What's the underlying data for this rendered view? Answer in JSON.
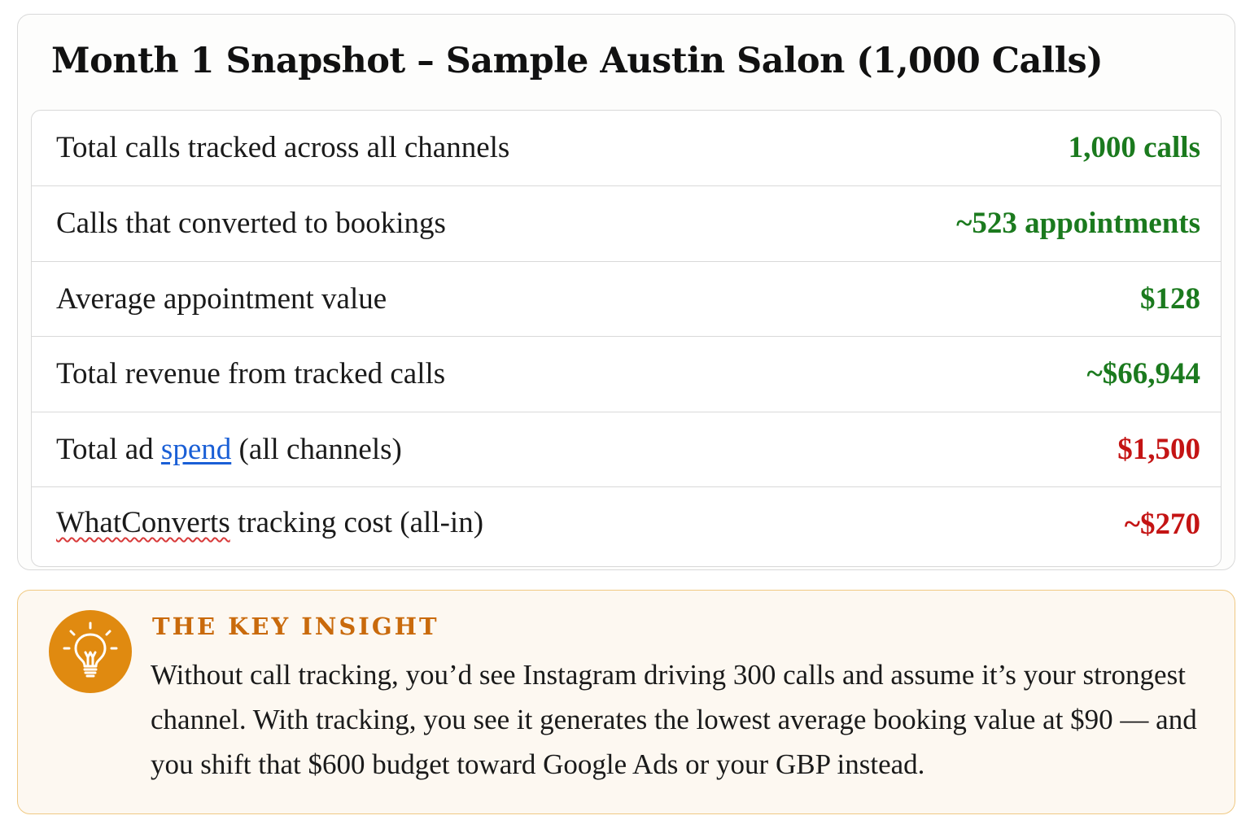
{
  "snapshot": {
    "title": "Month 1 Snapshot – Sample Austin Salon (1,000 Calls)",
    "rows": [
      {
        "label": "Total calls tracked across all channels",
        "value": "1,000 calls"
      },
      {
        "label": "Calls that converted to bookings",
        "value": "~523 appointments"
      },
      {
        "label": "Average appointment value",
        "value": "$128"
      },
      {
        "label": "Total revenue from tracked calls",
        "value": "~$66,944"
      },
      {
        "label_before": "Total ad ",
        "label_link": "spend",
        "label_after": " (all channels)",
        "value": "$1,500"
      },
      {
        "label_flagged": "WhatConverts",
        "label_after": " tracking cost (all-in)",
        "value": "~$270"
      }
    ]
  },
  "colors": {
    "positive": "#1b7a1e",
    "negative": "#c41414",
    "link": "#1a5fd6",
    "accent": "#e08a10"
  },
  "insight": {
    "icon": "lightbulb-icon",
    "heading": "THE KEY INSIGHT",
    "body": "Without call tracking, you’d see Instagram driving 300 calls and assume it’s your strongest channel. With tracking, you see it generates the lowest average booking value at $90 — and you shift that $600 budget toward Google Ads or your GBP instead."
  }
}
